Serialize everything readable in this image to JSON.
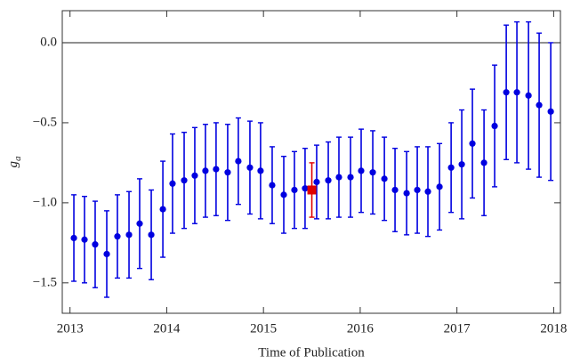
{
  "chart_data": {
    "type": "errorbar",
    "xlabel": "Time of Publication",
    "ylabel": "g",
    "ylabel_sub": "a",
    "xlim": [
      2012.92,
      2018.07
    ],
    "ylim": [
      -1.69,
      0.2
    ],
    "xticks": [
      2013,
      2014,
      2015,
      2016,
      2017,
      2018
    ],
    "yticks": [
      {
        "value": 0,
        "label": "0.0"
      },
      {
        "value": -0.5,
        "label": "−0.5"
      },
      {
        "value": -1,
        "label": "−1.0"
      },
      {
        "value": -1.5,
        "label": "−1.5"
      }
    ],
    "reference_line": 0,
    "series": [
      {
        "color": "#0000e0",
        "marker": "circle",
        "x": [
          2013.04,
          2013.15,
          2013.26,
          2013.38,
          2013.49,
          2013.61,
          2013.72,
          2013.84,
          2013.96,
          2014.06,
          2014.18,
          2014.29,
          2014.4,
          2014.51,
          2014.63,
          2014.74,
          2014.86,
          2014.97,
          2015.09,
          2015.21,
          2015.32,
          2015.43,
          2015.55,
          2015.67,
          2015.78,
          2015.9,
          2016.01,
          2016.13,
          2016.25,
          2016.36,
          2016.48,
          2016.59,
          2016.7,
          2016.82,
          2016.94,
          2017.05,
          2017.16,
          2017.28,
          2017.39,
          2017.51,
          2017.62,
          2017.74,
          2017.85,
          2017.97
        ],
        "values": [
          -1.22,
          -1.23,
          -1.26,
          -1.32,
          -1.21,
          -1.2,
          -1.13,
          -1.2,
          -1.04,
          -0.88,
          -0.86,
          -0.83,
          -0.8,
          -0.79,
          -0.81,
          -0.74,
          -0.78,
          -0.8,
          -0.89,
          -0.95,
          -0.92,
          -0.91,
          -0.87,
          -0.86,
          -0.84,
          -0.84,
          -0.8,
          -0.81,
          -0.85,
          -0.92,
          -0.94,
          -0.92,
          -0.93,
          -0.9,
          -0.78,
          -0.76,
          -0.63,
          -0.75,
          -0.52,
          -0.31,
          -0.31,
          -0.33,
          -0.39,
          -0.43
        ],
        "errors": [
          0.27,
          0.27,
          0.27,
          0.27,
          0.26,
          0.27,
          0.28,
          0.28,
          0.3,
          0.31,
          0.3,
          0.3,
          0.29,
          0.29,
          0.3,
          0.27,
          0.29,
          0.3,
          0.24,
          0.24,
          0.24,
          0.25,
          0.23,
          0.24,
          0.25,
          0.25,
          0.26,
          0.26,
          0.26,
          0.26,
          0.26,
          0.27,
          0.28,
          0.27,
          0.28,
          0.34,
          0.34,
          0.33,
          0.38,
          0.42,
          0.44,
          0.46,
          0.45,
          0.43
        ]
      },
      {
        "color": "#e00000",
        "marker": "square",
        "x": [
          2015.5
        ],
        "values": [
          -0.92
        ],
        "errors": [
          0.17
        ]
      }
    ]
  }
}
